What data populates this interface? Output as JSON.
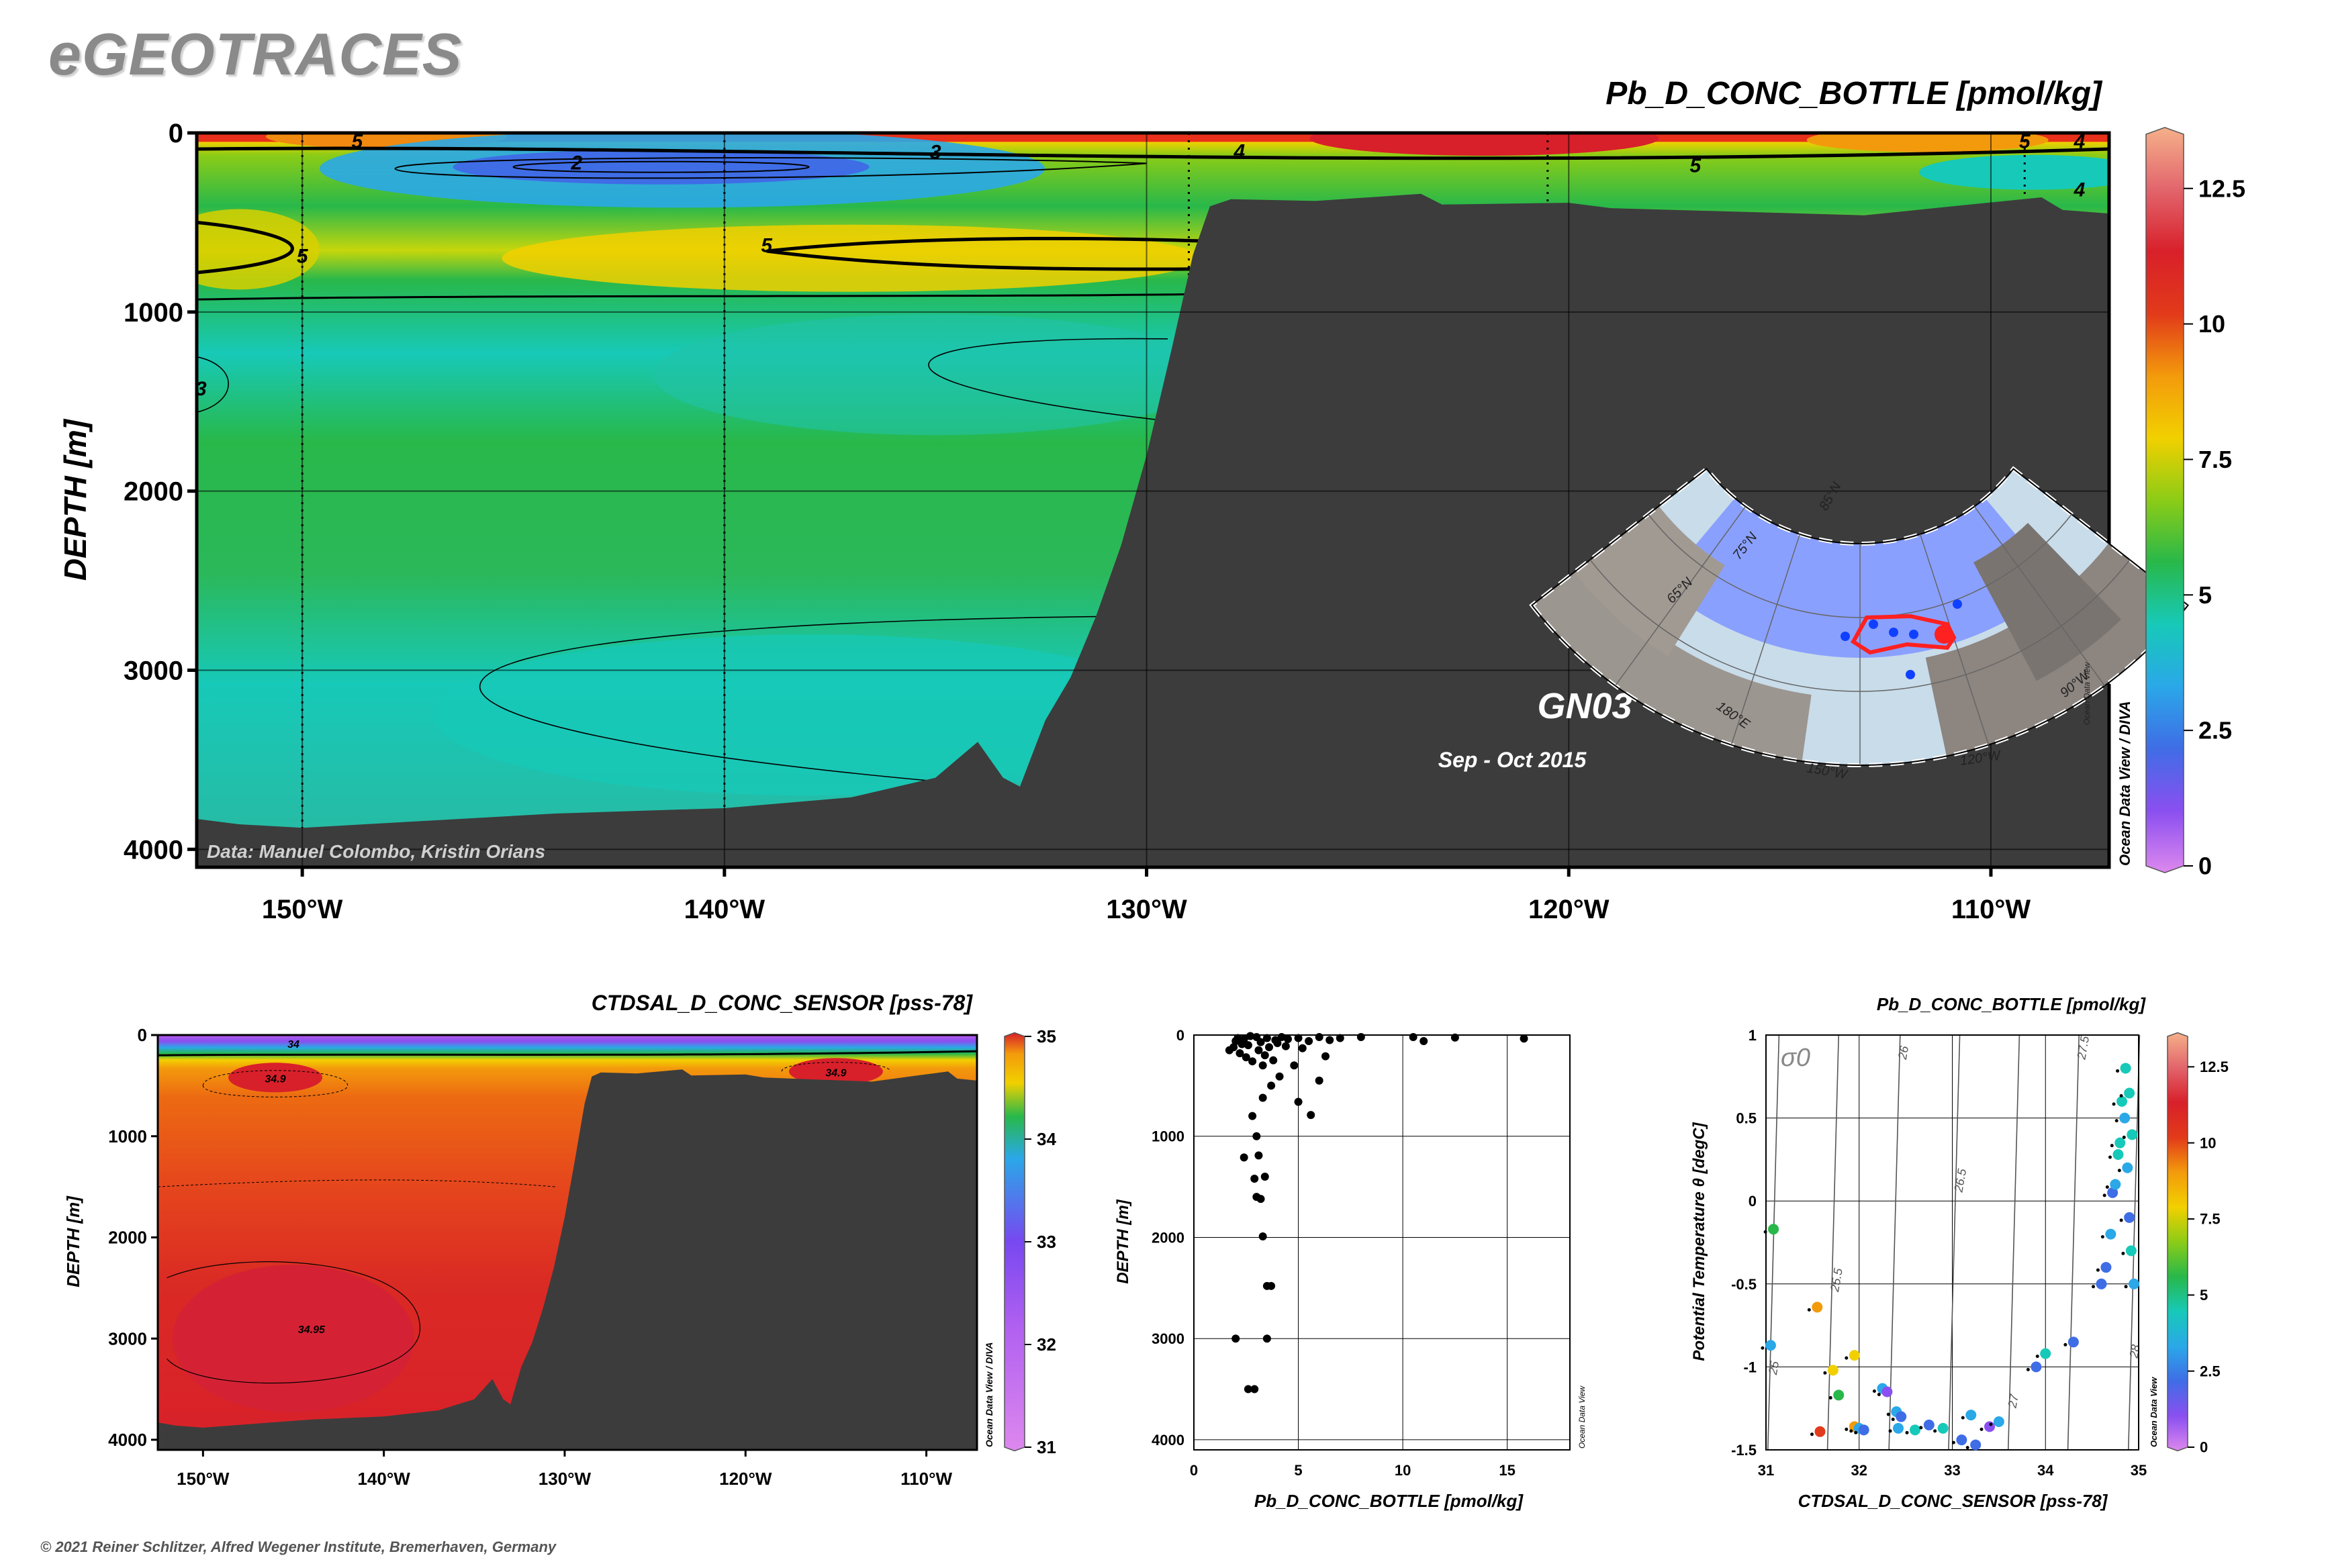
{
  "brand": "eGEOTRACES",
  "copyright": "© 2021 Reiner Schlitzer, Alfred Wegener Institute, Bremerhaven, Germany",
  "colors": {
    "land": "#3c3c3c",
    "scale": [
      "#dd88ee",
      "#8a4ff0",
      "#3f6de6",
      "#2aa8e8",
      "#17c9b8",
      "#28b84a",
      "#8ccc16",
      "#f2d000",
      "#f39a0c",
      "#e23a1a",
      "#d8202a",
      "#e2656c",
      "#f5b08a"
    ]
  },
  "chart_data": [
    {
      "type": "heatmap",
      "title": "Pb_D_CONC_BOTTLE [pmol/kg]",
      "ylabel": "DEPTH [m]",
      "xlabel": "",
      "xlim": [
        -152.5,
        -107.2
      ],
      "ylim": [
        0,
        4100
      ],
      "x_ticks": [
        -150,
        -140,
        -130,
        -120,
        -110
      ],
      "x_tick_labels": [
        "150°W",
        "140°W",
        "130°W",
        "120°W",
        "110°W"
      ],
      "y_ticks": [
        0,
        1000,
        2000,
        3000,
        4000
      ],
      "y_tick_labels": [
        "0",
        "1000",
        "2000",
        "3000",
        "4000"
      ],
      "colorbar": {
        "min": 0,
        "max": 13.5,
        "ticks": [
          0,
          2.5,
          5,
          7.5,
          10,
          12.5
        ],
        "tick_labels": [
          "0",
          "2.5",
          "5",
          "7.5",
          "10",
          "12.5"
        ],
        "label": "Ocean Data View / DIVA"
      },
      "contour_labels": [
        {
          "value": "2",
          "x": -143.5,
          "y": 160
        },
        {
          "value": "3",
          "x": -135,
          "y": 100
        },
        {
          "value": "4",
          "x": -127.8,
          "y": 95
        },
        {
          "value": "5",
          "x": -117,
          "y": 175
        },
        {
          "value": "5",
          "x": -139,
          "y": 620
        },
        {
          "value": "5",
          "x": -150,
          "y": 680
        },
        {
          "value": "4",
          "x": -126.4,
          "y": 920
        },
        {
          "value": "3",
          "x": -152.4,
          "y": 1420
        },
        {
          "value": "5",
          "x": -148.7,
          "y": 40
        },
        {
          "value": "5",
          "x": -109.2,
          "y": 40
        },
        {
          "value": "4",
          "x": -107.9,
          "y": 40
        },
        {
          "value": "4",
          "x": -107.9,
          "y": 310
        }
      ],
      "section_name": "GN03",
      "cruise_dates": "Sep - Oct 2015",
      "credit": "Data: Manuel Colombo, Kristin Orians",
      "inset_map_labels": [
        "85°N",
        "75°N",
        "65°N",
        "180°E",
        "150°W",
        "120°W",
        "90°W",
        "Ocean Data View"
      ]
    },
    {
      "type": "heatmap",
      "title": "CTDSAL_D_CONC_SENSOR [pss-78]",
      "ylabel": "DEPTH [m]",
      "xlabel": "",
      "xlim": [
        -152.5,
        -107.2
      ],
      "ylim": [
        0,
        4100
      ],
      "x_ticks": [
        -150,
        -140,
        -130,
        -120,
        -110
      ],
      "x_tick_labels": [
        "150°W",
        "140°W",
        "130°W",
        "120°W",
        "110°W"
      ],
      "y_ticks": [
        0,
        1000,
        2000,
        3000,
        4000
      ],
      "y_tick_labels": [
        "0",
        "1000",
        "2000",
        "3000",
        "4000"
      ],
      "colorbar": {
        "min": 31,
        "max": 35,
        "ticks": [
          31,
          32,
          33,
          34,
          35
        ],
        "tick_labels": [
          "31",
          "32",
          "33",
          "34",
          "35"
        ],
        "label": "Ocean Data View / DIVA"
      },
      "contour_labels": [
        {
          "value": "34",
          "x": -145,
          "y": 80
        },
        {
          "value": "34.9",
          "x": -146,
          "y": 420
        },
        {
          "value": "34.9",
          "x": -115,
          "y": 360
        },
        {
          "value": "34.95",
          "x": -144,
          "y": 2900
        }
      ]
    },
    {
      "type": "scatter",
      "title": "",
      "xlabel": "Pb_D_CONC_BOTTLE [pmol/kg]",
      "ylabel": "DEPTH [m]",
      "xlim": [
        0,
        18
      ],
      "ylim": [
        0,
        4100
      ],
      "x_ticks": [
        0,
        5,
        10,
        15
      ],
      "x_tick_labels": [
        "0",
        "5",
        "10",
        "15"
      ],
      "y_ticks": [
        0,
        1000,
        2000,
        3000,
        4000
      ],
      "y_tick_labels": [
        "0",
        "1000",
        "2000",
        "3000",
        "4000"
      ],
      "corner_label": "Ocean Data View",
      "points": [
        [
          1.7,
          150
        ],
        [
          1.9,
          120
        ],
        [
          2.0,
          60
        ],
        [
          2.2,
          180
        ],
        [
          2.4,
          40
        ],
        [
          2.5,
          220
        ],
        [
          2.6,
          100
        ],
        [
          2.8,
          260
        ],
        [
          3.0,
          20
        ],
        [
          3.1,
          150
        ],
        [
          3.2,
          70
        ],
        [
          3.3,
          300
        ],
        [
          3.4,
          200
        ],
        [
          3.5,
          30
        ],
        [
          3.6,
          120
        ],
        [
          3.8,
          250
        ],
        [
          4.0,
          80
        ],
        [
          4.2,
          20
        ],
        [
          4.5,
          40
        ],
        [
          5.0,
          30
        ],
        [
          5.5,
          60
        ],
        [
          6.0,
          20
        ],
        [
          6.5,
          50
        ],
        [
          7.0,
          30
        ],
        [
          8.0,
          20
        ],
        [
          10.5,
          20
        ],
        [
          11.0,
          60
        ],
        [
          12.5,
          25
        ],
        [
          15.8,
          35
        ],
        [
          2.1,
          30
        ],
        [
          2.3,
          90
        ],
        [
          2.7,
          10
        ],
        [
          3.9,
          50
        ],
        [
          4.4,
          110
        ],
        [
          5.2,
          130
        ],
        [
          6.3,
          210
        ],
        [
          4.8,
          300
        ],
        [
          4.1,
          410
        ],
        [
          3.7,
          500
        ],
        [
          6.0,
          450
        ],
        [
          3.3,
          620
        ],
        [
          5.0,
          660
        ],
        [
          2.8,
          800
        ],
        [
          5.6,
          790
        ],
        [
          3.0,
          1000
        ],
        [
          2.4,
          1210
        ],
        [
          3.1,
          1190
        ],
        [
          2.9,
          1420
        ],
        [
          3.4,
          1400
        ],
        [
          3.0,
          1600
        ],
        [
          3.2,
          1620
        ],
        [
          3.3,
          1990
        ],
        [
          3.5,
          2480
        ],
        [
          3.7,
          2480
        ],
        [
          2.0,
          3000
        ],
        [
          3.5,
          3000
        ],
        [
          2.6,
          3500
        ],
        [
          2.9,
          3500
        ]
      ]
    },
    {
      "type": "scatter",
      "title": "Pb_D_CONC_BOTTLE [pmol/kg]",
      "xlabel": "CTDSAL_D_CONC_SENSOR [pss-78]",
      "ylabel": "Potential Temperature θ [degC]",
      "xlim": [
        31,
        35
      ],
      "ylim": [
        -1.5,
        1
      ],
      "x_ticks": [
        31,
        32,
        33,
        34,
        35
      ],
      "x_tick_labels": [
        "31",
        "32",
        "33",
        "34",
        "35"
      ],
      "y_ticks": [
        -1.5,
        -1,
        -0.5,
        0,
        0.5,
        1
      ],
      "y_tick_labels": [
        "-1.5",
        "-1",
        "-0.5",
        "0",
        "0.5",
        "1"
      ],
      "isopycnal_symbol": "σ0",
      "isopycnal_labels": [
        "25",
        "25.5",
        "26",
        "26.5",
        "27",
        "27.5",
        "28"
      ],
      "colorbar": {
        "min": 0,
        "max": 13.5,
        "ticks": [
          0,
          2.5,
          5,
          7.5,
          10,
          12.5
        ],
        "tick_labels": [
          "0",
          "2.5",
          "5",
          "7.5",
          "10",
          "12.5"
        ],
        "label": "Ocean Data View"
      },
      "points": [
        [
          31.05,
          -0.87,
          3
        ],
        [
          31.08,
          -0.17,
          6
        ],
        [
          31.55,
          -0.64,
          9
        ],
        [
          31.58,
          -1.39,
          10
        ],
        [
          31.72,
          -1.02,
          8
        ],
        [
          31.78,
          -1.17,
          6
        ],
        [
          31.95,
          -0.93,
          8
        ],
        [
          31.95,
          -1.36,
          9
        ],
        [
          32.0,
          -1.37,
          3
        ],
        [
          32.05,
          -1.38,
          2
        ],
        [
          32.25,
          -1.13,
          3
        ],
        [
          32.3,
          -1.15,
          1
        ],
        [
          32.4,
          -1.27,
          3
        ],
        [
          32.45,
          -1.3,
          2
        ],
        [
          32.42,
          -1.37,
          3
        ],
        [
          32.6,
          -1.38,
          5
        ],
        [
          32.75,
          -1.35,
          2
        ],
        [
          32.9,
          -1.37,
          5
        ],
        [
          33.1,
          -1.44,
          2
        ],
        [
          33.2,
          -1.29,
          3
        ],
        [
          33.25,
          -1.47,
          2
        ],
        [
          33.4,
          -1.36,
          1
        ],
        [
          33.5,
          -1.33,
          3
        ],
        [
          33.9,
          -1.0,
          2
        ],
        [
          34.0,
          -0.92,
          5
        ],
        [
          34.3,
          -0.85,
          2
        ],
        [
          34.6,
          -0.5,
          2
        ],
        [
          34.65,
          -0.4,
          2
        ],
        [
          34.7,
          -0.2,
          3
        ],
        [
          34.72,
          0.05,
          2
        ],
        [
          34.75,
          0.1,
          3
        ],
        [
          34.78,
          0.28,
          5
        ],
        [
          34.8,
          0.35,
          4
        ],
        [
          34.85,
          0.5,
          3
        ],
        [
          34.82,
          0.6,
          4
        ],
        [
          34.86,
          0.8,
          4
        ],
        [
          34.88,
          0.2,
          3
        ],
        [
          34.9,
          -0.1,
          2
        ],
        [
          34.92,
          -0.3,
          4
        ],
        [
          34.95,
          -0.5,
          3
        ],
        [
          34.93,
          0.4,
          5
        ],
        [
          34.9,
          0.65,
          5
        ]
      ]
    }
  ]
}
